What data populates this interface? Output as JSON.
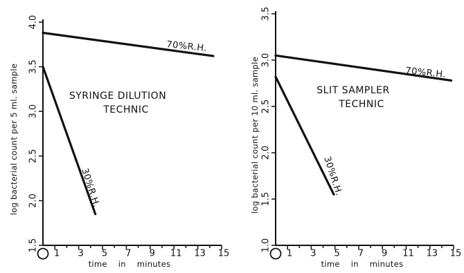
{
  "chart_data": [
    {
      "type": "line",
      "title": "",
      "xlabel": "time in minutes",
      "ylabel": "log bacterial count per 5 ml. sample",
      "xlim": [
        0,
        15
      ],
      "ylim": [
        1.5,
        4.0
      ],
      "x_ticks": [
        1,
        3,
        5,
        7,
        9,
        11,
        13,
        15
      ],
      "x_minor_ticks": [
        2,
        4,
        6,
        8,
        10,
        12,
        14
      ],
      "x_origin_label": "O",
      "y_ticks": [
        1.5,
        2.0,
        2.5,
        3.0,
        3.5,
        4.0
      ],
      "y_tick_labels": [
        "1.5",
        "2.0",
        "2.5",
        "3.0",
        "3.5",
        "4.0"
      ],
      "annotation": [
        "SYRINGE DILUTION",
        "TECHNIC"
      ],
      "series": [
        {
          "name": "70%R.H.",
          "x": [
            0,
            14.3
          ],
          "y": [
            3.88,
            3.62
          ]
        },
        {
          "name": "30%R.H.",
          "x": [
            0,
            4.4
          ],
          "y": [
            3.5,
            1.85
          ]
        }
      ]
    },
    {
      "type": "line",
      "title": "",
      "xlabel": "time in minutes",
      "ylabel": "log bacterial count per 10 ml. sample",
      "xlim": [
        0,
        15
      ],
      "ylim": [
        1.0,
        3.5
      ],
      "x_ticks": [
        1,
        3,
        5,
        7,
        9,
        11,
        13,
        15
      ],
      "x_minor_ticks": [
        2,
        4,
        6,
        8,
        10,
        12,
        14
      ],
      "x_origin_label": "O",
      "y_ticks": [
        1.0,
        1.5,
        2.0,
        2.5,
        3.0,
        3.5
      ],
      "y_tick_labels": [
        "1.0",
        "1.5",
        "2.0",
        "2.5",
        "3.0",
        "3.5"
      ],
      "annotation": [
        "SLIT SAMPLER",
        "TECHNIC"
      ],
      "series": [
        {
          "name": "70%R.H.",
          "x": [
            0,
            14.8
          ],
          "y": [
            3.05,
            2.78
          ]
        },
        {
          "name": "30%R.H.",
          "x": [
            0,
            4.9
          ],
          "y": [
            2.82,
            1.55
          ]
        }
      ]
    }
  ]
}
